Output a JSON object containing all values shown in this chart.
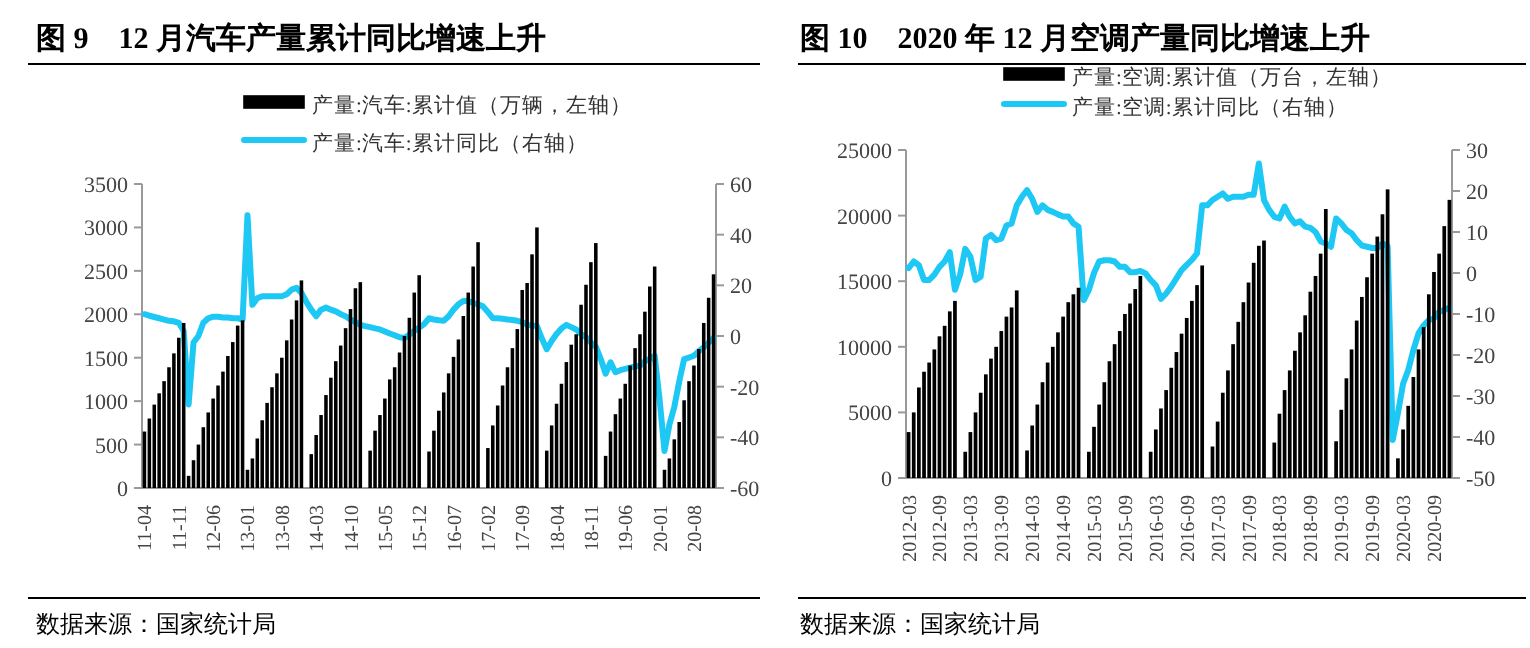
{
  "chart_data": [
    {
      "type": "bar",
      "title": "图 9　12 月汽车产量累计同比增速上升",
      "legend": "top",
      "grid": false,
      "categories": [
        "11-04",
        null,
        null,
        null,
        null,
        null,
        null,
        "11-11",
        null,
        null,
        null,
        null,
        null,
        null,
        "12-06",
        null,
        null,
        null,
        null,
        null,
        null,
        "13-01",
        null,
        null,
        null,
        null,
        null,
        null,
        "13-08",
        null,
        null,
        null,
        null,
        null,
        null,
        "14-03",
        null,
        null,
        null,
        null,
        null,
        null,
        "14-10",
        null,
        null,
        null,
        null,
        null,
        null,
        "15-05",
        null,
        null,
        null,
        null,
        null,
        null,
        "15-12",
        null,
        null,
        null,
        null,
        null,
        null,
        "16-07",
        null,
        null,
        null,
        null,
        null,
        null,
        "17-02",
        null,
        null,
        null,
        null,
        null,
        null,
        "17-09",
        null,
        null,
        null,
        null,
        null,
        null,
        "18-04",
        null,
        null,
        null,
        null,
        null,
        null,
        "18-11",
        null,
        null,
        null,
        null,
        null,
        null,
        "19-06",
        null,
        null,
        null,
        null,
        null,
        null,
        "20-01",
        null,
        null,
        null,
        null,
        null,
        null,
        "20-08",
        null,
        null,
        null,
        null
      ],
      "series": [
        {
          "name": "产量:汽车:累计值（万辆，左轴）",
          "color": "#000000",
          "values": [
            650,
            800,
            960,
            1090,
            1230,
            1390,
            1550,
            1730,
            1900,
            140,
            320,
            500,
            700,
            870,
            1030,
            1180,
            1340,
            1520,
            1680,
            1870,
            1930,
            210,
            340,
            570,
            780,
            980,
            1160,
            1320,
            1500,
            1700,
            1940,
            2160,
            2390,
            null,
            390,
            610,
            840,
            1070,
            1270,
            1460,
            1640,
            1840,
            2060,
            2300,
            2370,
            null,
            430,
            660,
            840,
            1030,
            1250,
            1390,
            1560,
            1750,
            1960,
            2250,
            2450,
            null,
            420,
            660,
            890,
            1100,
            1320,
            1510,
            1710,
            1980,
            2250,
            2550,
            2830,
            null,
            460,
            720,
            950,
            1180,
            1390,
            1610,
            1830,
            2280,
            2360,
            2690,
            3000,
            null,
            430,
            720,
            970,
            1200,
            1450,
            1650,
            1770,
            2110,
            2340,
            2600,
            2820,
            null,
            370,
            650,
            850,
            1030,
            1200,
            1410,
            1610,
            1770,
            2030,
            2320,
            2550,
            null,
            210,
            340,
            560,
            760,
            1010,
            1230,
            1410,
            1600,
            1900,
            2190,
            2460
          ]
        },
        {
          "name": "产量:汽车:累计同比（右轴）",
          "type": "line",
          "axis": "y2",
          "color": "#1ec8f5",
          "values": [
            8.6,
            8,
            7.5,
            7,
            6.5,
            6,
            5.8,
            5.2,
            2,
            -27,
            -2.6,
            0,
            5.2,
            7,
            7.6,
            7.6,
            7.3,
            7.3,
            7,
            7,
            6.5,
            47.7,
            12.3,
            14.9,
            15.7,
            15.7,
            15.7,
            15.7,
            15.7,
            16.5,
            18.3,
            19,
            17,
            13.5,
            10.4,
            7.8,
            10.4,
            11.2,
            10.4,
            9.7,
            8.6,
            7.8,
            6.5,
            5.5,
            4.4,
            3.9,
            3.5,
            3,
            2.6,
            1.8,
            1,
            0.3,
            -0.5,
            -0.8,
            0.5,
            2,
            3.3,
            4.7,
            7,
            6.5,
            6.2,
            6,
            7.8,
            10.4,
            12.5,
            13.8,
            13.8,
            13,
            12.5,
            11.7,
            9.5,
            7,
            7,
            6.8,
            6.5,
            6.3,
            6,
            5.5,
            4.4,
            4.2,
            3.9,
            -1,
            -5.2,
            -2,
            0.8,
            3,
            4.4,
            3.5,
            2.6,
            0.8,
            -0.5,
            -2.6,
            -4.2,
            -9,
            -14.9,
            -10.4,
            -14.3,
            -13.5,
            -13,
            -12.5,
            -12,
            -11.7,
            -10,
            -9,
            -7.8,
            -25,
            -45.4,
            -35,
            -28,
            -18,
            -9.1,
            -8.5,
            -7.8,
            -6,
            -4.5,
            -2.6,
            -0.8
          ]
        }
      ],
      "ylim": [
        0,
        3500
      ],
      "yticks": [
        0,
        500,
        1000,
        1500,
        2000,
        2500,
        3000,
        3500
      ],
      "y2lim": [
        -60,
        60
      ],
      "y2ticks": [
        -60,
        -40,
        -20,
        0,
        20,
        40,
        60
      ],
      "annotations": [
        "数据来源：国家统计局"
      ]
    },
    {
      "type": "bar",
      "title": "图 10　2020 年 12 月空调产量同比增速上升",
      "legend": "top",
      "grid": false,
      "categories": [
        "2012-03",
        null,
        null,
        null,
        null,
        null,
        "2012-09",
        null,
        null,
        null,
        null,
        null,
        "2013-03",
        null,
        null,
        null,
        null,
        null,
        "2013-09",
        null,
        null,
        null,
        null,
        null,
        "2014-03",
        null,
        null,
        null,
        null,
        null,
        "2014-09",
        null,
        null,
        null,
        null,
        null,
        "2015-03",
        null,
        null,
        null,
        null,
        null,
        "2015-09",
        null,
        null,
        null,
        null,
        null,
        "2016-03",
        null,
        null,
        null,
        null,
        null,
        "2016-09",
        null,
        null,
        null,
        null,
        null,
        "2017-03",
        null,
        null,
        null,
        null,
        null,
        "2017-09",
        null,
        null,
        null,
        null,
        null,
        "2018-03",
        null,
        null,
        null,
        null,
        null,
        "2018-09",
        null,
        null,
        null,
        null,
        null,
        "2019-03",
        null,
        null,
        null,
        null,
        null,
        "2019-09",
        null,
        null,
        null,
        null,
        null,
        "2020-03",
        null,
        null,
        null,
        null,
        null,
        "2020-09",
        null,
        null,
        null
      ],
      "series": [
        {
          "name": "产量:空调:累计值（万台，左轴）",
          "color": "#000000",
          "values": [
            3500,
            5000,
            6900,
            8100,
            8800,
            9800,
            10800,
            11600,
            12700,
            13500,
            null,
            2000,
            3500,
            5000,
            6500,
            7900,
            9100,
            10000,
            11200,
            12300,
            13000,
            14300,
            null,
            2100,
            4000,
            5600,
            7300,
            8800,
            10000,
            11100,
            12300,
            13400,
            14000,
            14500,
            null,
            2000,
            3900,
            5600,
            7300,
            8900,
            10200,
            11200,
            12500,
            13300,
            14400,
            15400,
            null,
            2000,
            3700,
            5300,
            6700,
            8400,
            9600,
            11000,
            12200,
            13500,
            14700,
            16200,
            null,
            2400,
            4300,
            6500,
            8200,
            10200,
            11900,
            13400,
            14900,
            16400,
            17700,
            18100,
            null,
            2700,
            4900,
            6700,
            8200,
            9700,
            11100,
            12400,
            14200,
            15400,
            17100,
            20500,
            null,
            2800,
            5200,
            7600,
            9800,
            12000,
            13800,
            15300,
            17100,
            18400,
            20100,
            22000,
            null,
            1500,
            3700,
            5500,
            7700,
            9800,
            11500,
            14000,
            15700,
            17100,
            19200,
            21200
          ]
        },
        {
          "name": "产量:空调:累计同比（右轴）",
          "type": "line",
          "axis": "y2",
          "color": "#1ec8f5",
          "values": [
            1.2,
            2.8,
            1.9,
            -1.7,
            -1.7,
            -0.4,
            1.5,
            2.8,
            5.1,
            -4.1,
            -0.4,
            5.9,
            4,
            -1.7,
            -0.9,
            8.4,
            9.3,
            8,
            8.4,
            11.6,
            12.1,
            16.5,
            18.6,
            20.2,
            18.1,
            14.9,
            16.5,
            15.4,
            14.9,
            14.3,
            13.8,
            13.8,
            12.1,
            11.3,
            -6.6,
            -4.1,
            0,
            2.8,
            3.1,
            3.1,
            2.8,
            1.5,
            1.5,
            0.2,
            0.2,
            0.5,
            -0.1,
            -1.7,
            -3,
            -6.3,
            -5,
            -3.3,
            -1.3,
            0.7,
            2,
            3.2,
            4.8,
            16.5,
            16.5,
            17.8,
            18.6,
            19.4,
            18.1,
            18.6,
            18.6,
            18.6,
            19.1,
            19.1,
            26.7,
            17.8,
            15.4,
            13.7,
            13.3,
            16.2,
            13.7,
            12.1,
            12.6,
            11.3,
            11,
            10,
            7.7,
            7.2,
            6.4,
            13.3,
            12.1,
            10.5,
            9.7,
            8,
            6.7,
            6.4,
            6.1,
            6.1,
            7.2,
            6.5,
            -40.7,
            -34.2,
            -27,
            -23.7,
            -18.8,
            -14.7,
            -12.8,
            -11.5,
            -11.1,
            -9.5,
            -9,
            -8.5
          ]
        }
      ],
      "ylim": [
        0,
        25000
      ],
      "yticks": [
        0,
        5000,
        10000,
        15000,
        20000,
        25000
      ],
      "y2lim": [
        -50,
        30
      ],
      "y2ticks": [
        -50,
        -40,
        -30,
        -20,
        -10,
        0,
        10,
        20,
        30
      ],
      "annotations": [
        "数据来源：国家统计局"
      ]
    }
  ]
}
